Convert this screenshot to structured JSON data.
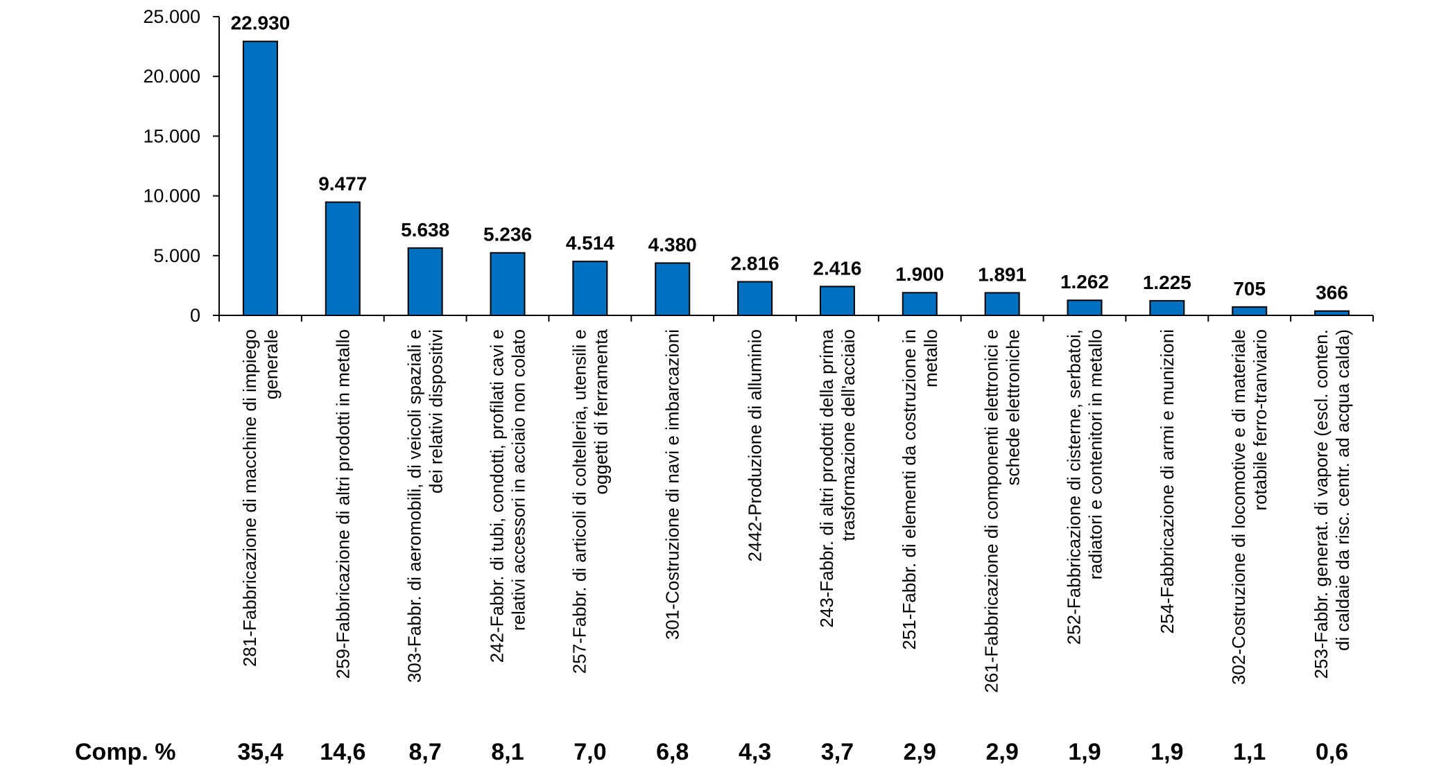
{
  "chart_data": {
    "type": "bar",
    "title": "",
    "xlabel": "",
    "ylabel": "",
    "ylim": [
      0,
      25000
    ],
    "yticks": [
      "0",
      "5.000",
      "10.000",
      "15.000",
      "20.000",
      "25.000"
    ],
    "ytick_values": [
      0,
      5000,
      10000,
      15000,
      20000,
      25000
    ],
    "bar_color": "#0070C0",
    "categories": [
      [
        "281-Fabbricazione di macchine di impiego",
        "generale"
      ],
      [
        "259-Fabbricazione di altri prodotti in metallo"
      ],
      [
        "303-Fabbr. di aeromobili, di veicoli spaziali e",
        "dei relativi dispositivi"
      ],
      [
        "242-Fabbr. di tubi, condotti, profilati cavi e",
        "relativi accessori in acciaio non colato"
      ],
      [
        "257-Fabbr. di articoli di coltelleria, utensili e",
        "oggetti di ferramenta"
      ],
      [
        "301-Costruzione di navi e imbarcazioni"
      ],
      [
        "2442-Produzione di alluminio"
      ],
      [
        "243-Fabbr. di altri prodotti della prima",
        "trasformazione dell'acciaio"
      ],
      [
        "251-Fabbr. di elementi da costruzione in",
        "metallo"
      ],
      [
        "261-Fabbricazione di componenti elettronici e",
        "schede elettroniche"
      ],
      [
        "252-Fabbricazione di cisterne, serbatoi,",
        "radiatori e contenitori in metallo"
      ],
      [
        "254-Fabbricazione di armi e munizioni"
      ],
      [
        "302-Costruzione di locomotive e di materiale",
        "rotabile ferro-tranviario"
      ],
      [
        "253-Fabbr. generat. di vapore (escl. conten.",
        "di caldaie da risc. centr. ad acqua calda)"
      ]
    ],
    "values": [
      22930,
      9477,
      5638,
      5236,
      4514,
      4380,
      2816,
      2416,
      1900,
      1891,
      1262,
      1225,
      705,
      366
    ],
    "value_labels": [
      "22.930",
      "9.477",
      "5.638",
      "5.236",
      "4.514",
      "4.380",
      "2.816",
      "2.416",
      "1.900",
      "1.891",
      "1.262",
      "1.225",
      "705",
      "366"
    ],
    "comp_label": "Comp. %",
    "comp_values": [
      "35,4",
      "14,6",
      "8,7",
      "8,1",
      "7,0",
      "6,8",
      "4,3",
      "3,7",
      "2,9",
      "2,9",
      "1,9",
      "1,9",
      "1,1",
      "0,6"
    ]
  }
}
